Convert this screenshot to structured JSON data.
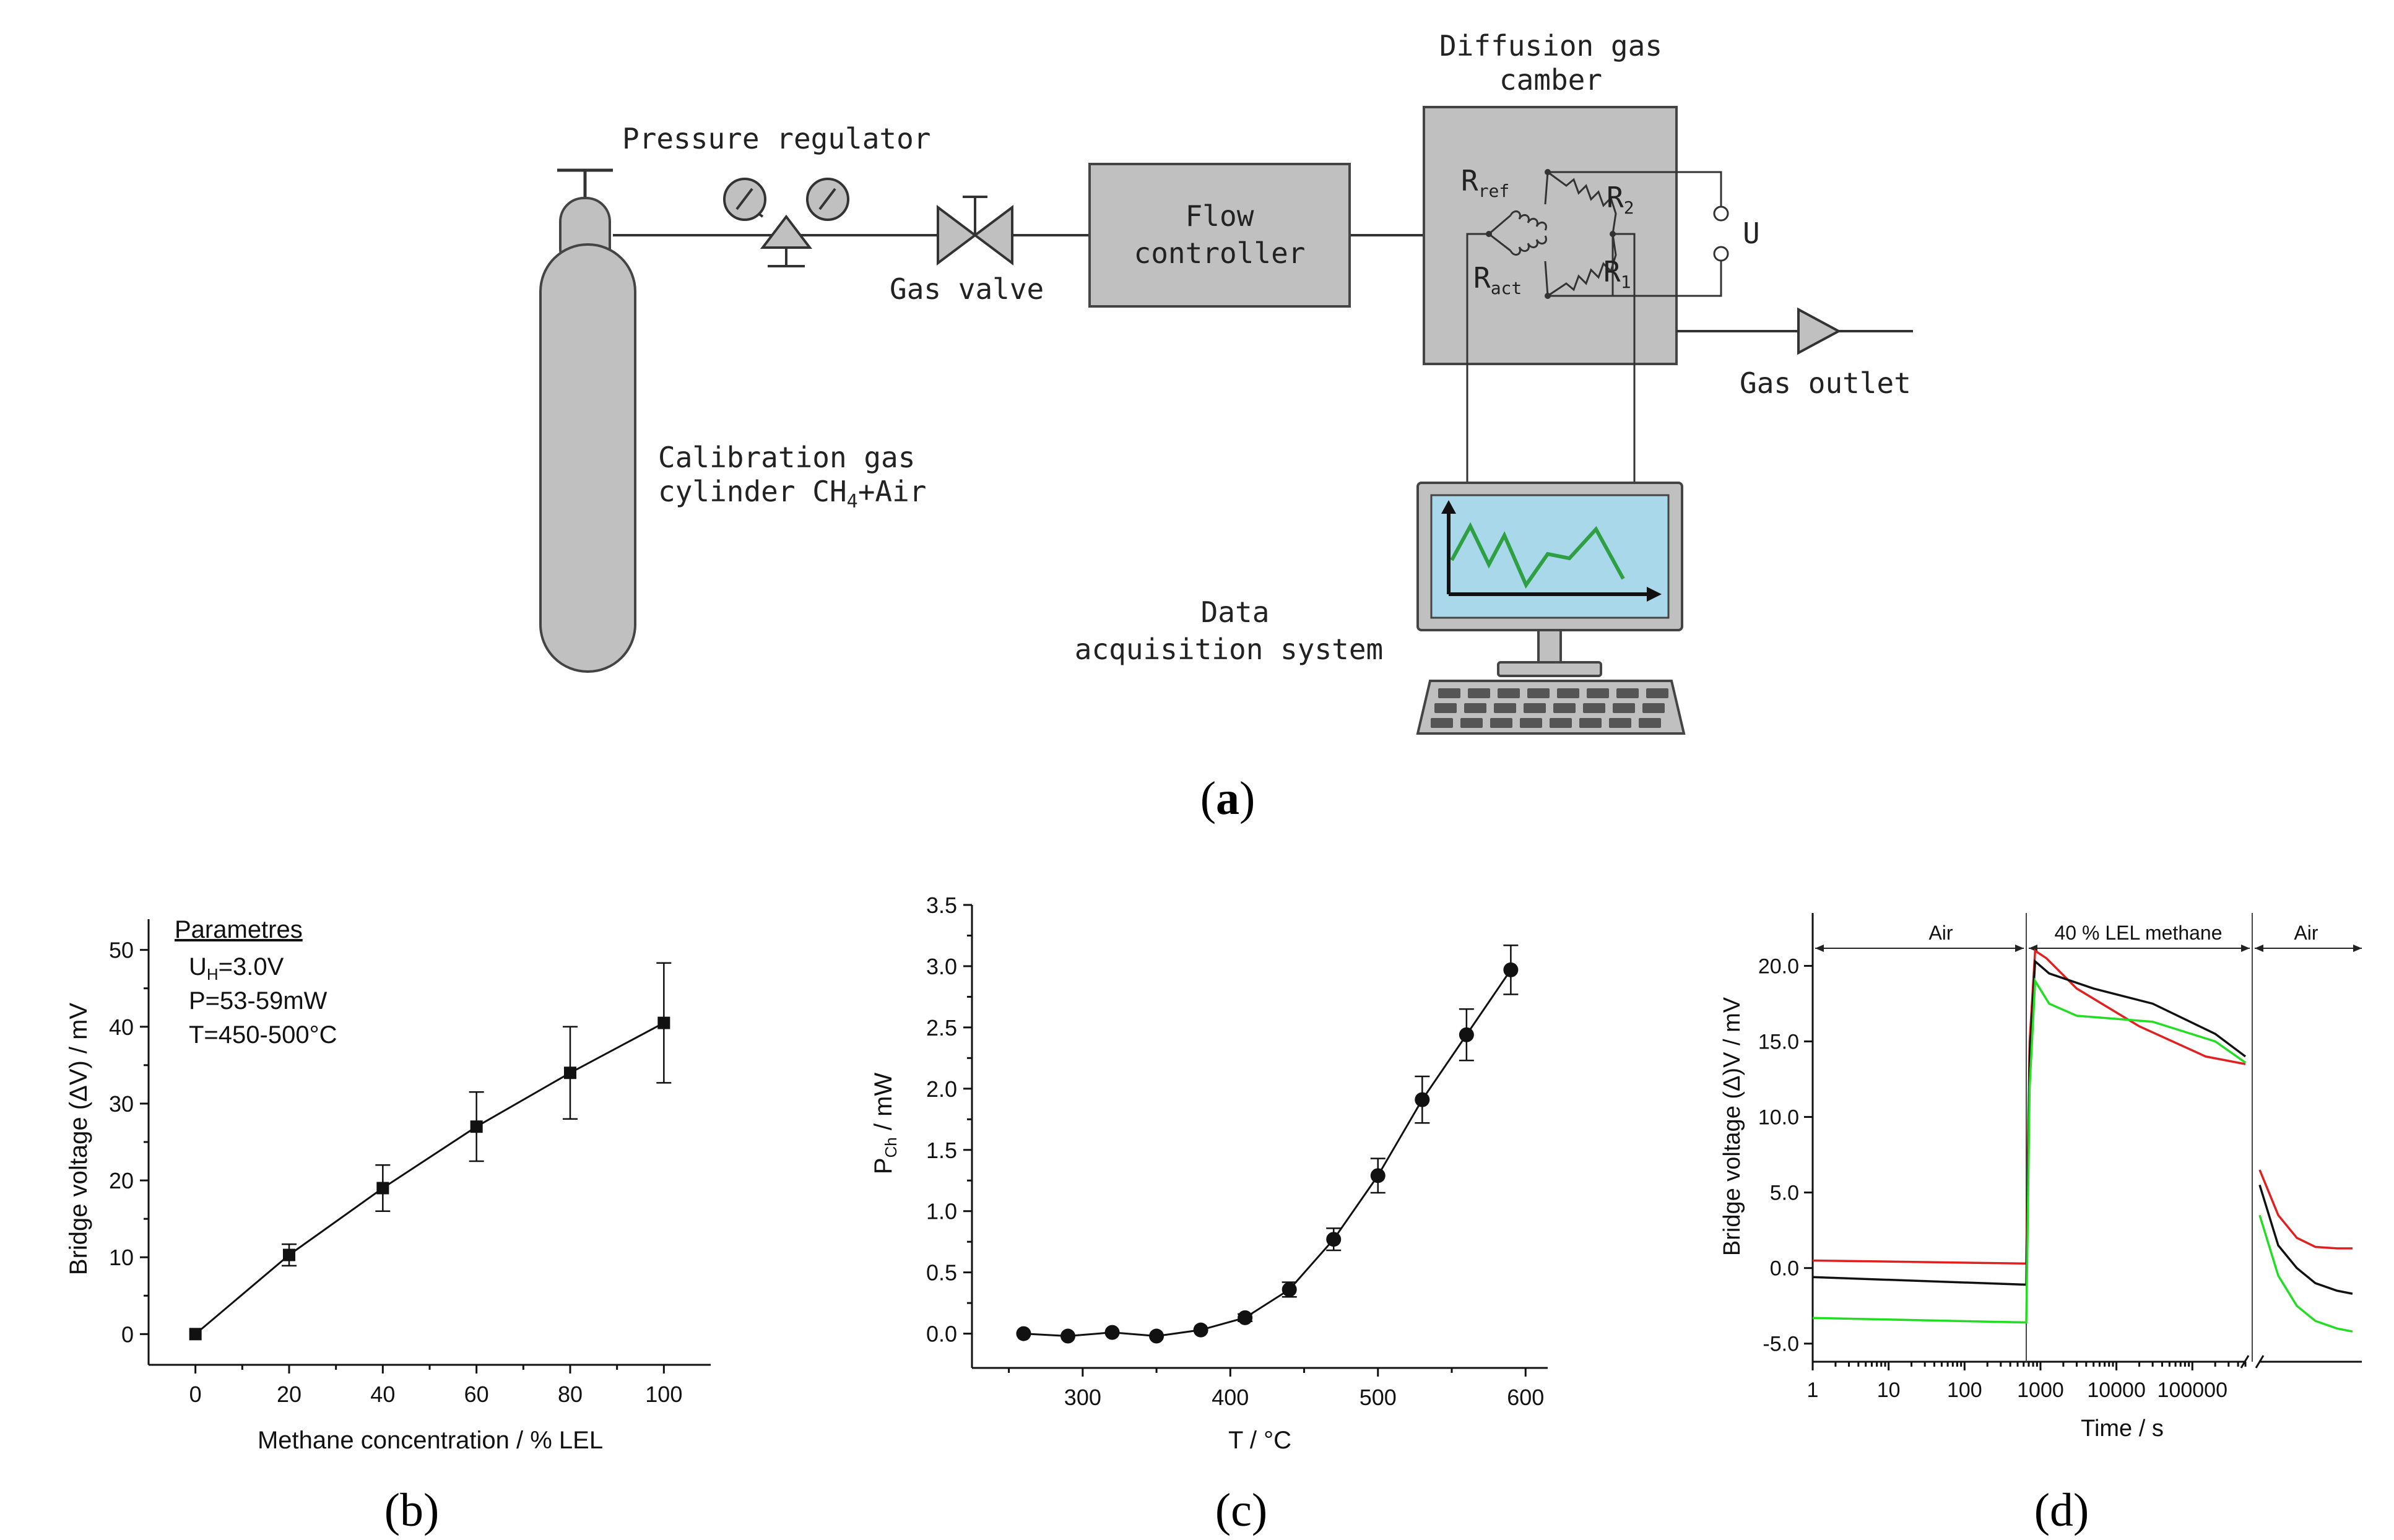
{
  "diagram": {
    "pressure_regulator": "Pressure regulator",
    "gas_valve": "Gas valve",
    "flow_controller_line1": "Flow",
    "flow_controller_line2": "controller",
    "chamber_line1": "Diffusion gas",
    "chamber_line2": "camber",
    "r_ref": "R",
    "r_ref_sub": "ref",
    "r_act": "R",
    "r_act_sub": "act",
    "r2": "R",
    "r2_sub": "2",
    "r1": "R",
    "r1_sub": "1",
    "u": "U",
    "gas_outlet": "Gas outlet",
    "cylinder_line1": "Calibration gas",
    "cylinder_line2_pre": "cylinder CH",
    "cylinder_line2_sub": "4",
    "cylinder_line2_post": "+Air",
    "daq_line1": "Data",
    "daq_line2": "acquisition system",
    "label_open": "(",
    "label_letter": "a",
    "label_close": ")"
  },
  "colors": {
    "equipment_gray": "#c0c0c0",
    "screen_blue": "#a8d8ea",
    "screen_trace": "#2ea043",
    "red_series": "#e02020",
    "green_series": "#22dd22",
    "black_series": "#111111"
  },
  "chart_data": [
    {
      "panel": "b",
      "type": "line",
      "xlabel": "Methane concentration / % LEL",
      "ylabel": "Bridge voltage (ΔV) / mV",
      "x": [
        0,
        20,
        40,
        60,
        80,
        100
      ],
      "y": [
        0,
        10.3,
        19,
        27,
        34,
        40.5
      ],
      "errors": [
        0,
        1.4,
        3,
        4.5,
        6,
        7.8
      ],
      "xlim": [
        -10,
        110
      ],
      "ylim": [
        -4,
        54
      ],
      "xticks": [
        "0",
        "20",
        "40",
        "60",
        "80",
        "100"
      ],
      "yticks": [
        "0",
        "10",
        "20",
        "30",
        "40",
        "50"
      ],
      "marker": "square",
      "annotation": {
        "title": "Parametres",
        "uh_pre": "U",
        "uh_sub": "H",
        "uh_post": "=3.0V",
        "power": "P=53-59mW",
        "temperature": "T=450-500°C"
      },
      "label": "(b)"
    },
    {
      "panel": "c",
      "type": "line",
      "xlabel": "T / °C",
      "ylabel_pre": "P",
      "ylabel_sub": "Ch",
      "ylabel_post": " / mW",
      "x": [
        260,
        290,
        320,
        350,
        380,
        410,
        440,
        470,
        500,
        530,
        560,
        590
      ],
      "y": [
        0.0,
        -0.02,
        0.01,
        -0.02,
        0.03,
        0.13,
        0.36,
        0.77,
        1.29,
        1.91,
        2.44,
        2.97
      ],
      "errors": [
        0,
        0,
        0,
        0,
        0,
        0.03,
        0.06,
        0.09,
        0.14,
        0.19,
        0.21,
        0.2
      ],
      "xlim": [
        225,
        615
      ],
      "ylim": [
        -0.28,
        3.5
      ],
      "xticks": [
        "300",
        "400",
        "500",
        "600"
      ],
      "yticks": [
        "0.0",
        "0.5",
        "1.0",
        "1.5",
        "2.0",
        "2.5",
        "3.0",
        "3.5"
      ],
      "marker": "circle",
      "label": "(c)"
    },
    {
      "panel": "d",
      "type": "line",
      "xlabel": "Time / s",
      "ylabel": "Bridge voltage (Δ)V / mV",
      "xscale": "log (broken axis)",
      "xticks": [
        "1",
        "10",
        "100",
        "1000",
        "10000",
        "100000"
      ],
      "yticks": [
        "-5.0",
        "0.0",
        "5.0",
        "10.0",
        "15.0",
        "20.0"
      ],
      "ylim": [
        -6.2,
        23.5
      ],
      "regions": [
        "Air",
        "40 % LEL methane",
        "Air"
      ],
      "series": [
        {
          "name": "red",
          "color": "#e02020",
          "points": [
            [
              1,
              0.5
            ],
            [
              650,
              0.3
            ],
            [
              720,
              15
            ],
            [
              850,
              21
            ],
            [
              1200,
              20.5
            ],
            [
              3000,
              18.5
            ],
            [
              20000,
              16
            ],
            [
              150000,
              14
            ],
            [
              500000,
              13.5
            ]
          ],
          "after_break": [
            6.5,
            3.5,
            2,
            1.4,
            1.3,
            1.3
          ]
        },
        {
          "name": "black",
          "color": "#111111",
          "points": [
            [
              1,
              -0.6
            ],
            [
              650,
              -1.1
            ],
            [
              720,
              14
            ],
            [
              850,
              20.3
            ],
            [
              1300,
              19.5
            ],
            [
              5000,
              18.5
            ],
            [
              30000,
              17.5
            ],
            [
              200000,
              15.5
            ],
            [
              500000,
              14
            ]
          ],
          "after_break": [
            5.5,
            1.5,
            0,
            -1.0,
            -1.5,
            -1.7
          ]
        },
        {
          "name": "green",
          "color": "#22dd22",
          "points": [
            [
              1,
              -3.3
            ],
            [
              650,
              -3.6
            ],
            [
              720,
              12
            ],
            [
              850,
              19
            ],
            [
              1300,
              17.5
            ],
            [
              3000,
              16.7
            ],
            [
              30000,
              16.3
            ],
            [
              200000,
              15
            ],
            [
              500000,
              13.6
            ]
          ],
          "after_break": [
            3.5,
            -0.5,
            -2.5,
            -3.5,
            -4.0,
            -4.2
          ]
        }
      ],
      "label": "(d)"
    }
  ]
}
